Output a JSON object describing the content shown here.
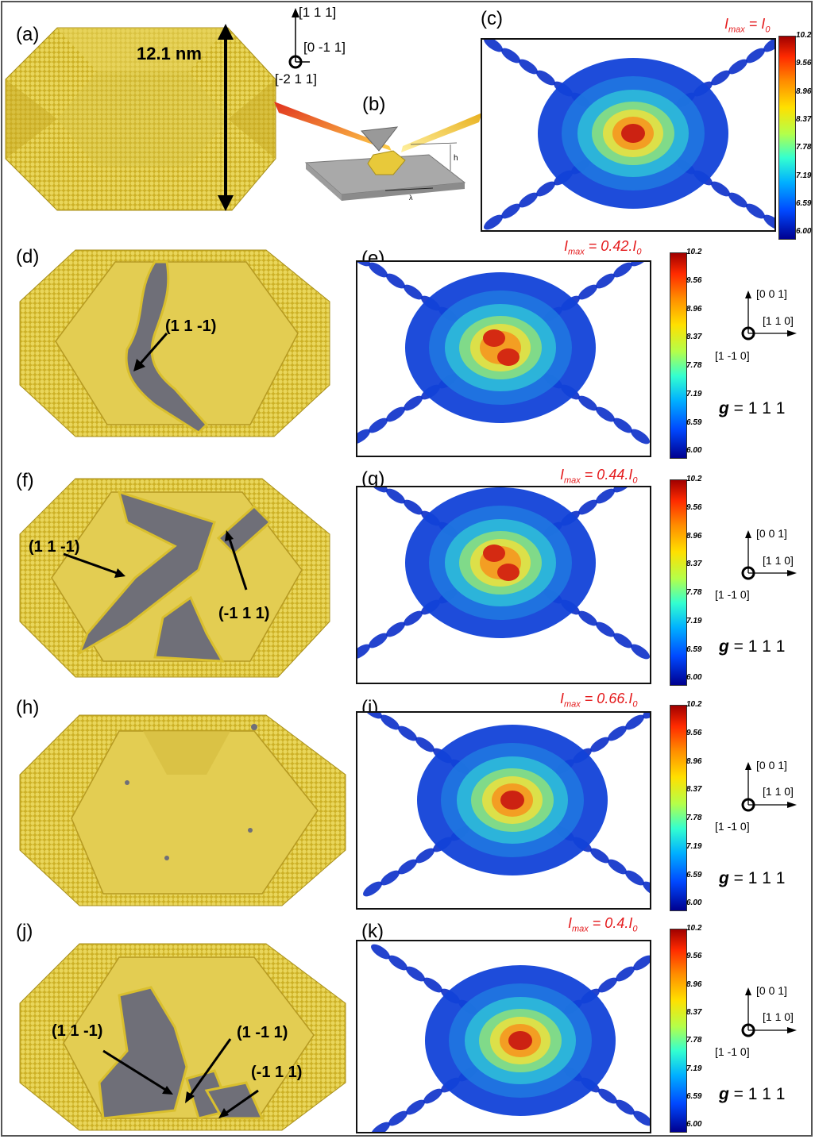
{
  "panels": {
    "a": {
      "label": "(a)",
      "dimension": "12.1 nm"
    },
    "b": {
      "label": "(b)",
      "h": "h",
      "lambda": "λ"
    },
    "c": {
      "label": "(c)",
      "imax": "I",
      "imax_sub": "max",
      "imax_rest": " = I",
      "imax_rest_sub": "0"
    },
    "d": {
      "label": "(d)",
      "annotations": [
        "(1 1 -1)"
      ]
    },
    "e": {
      "label": "(e)",
      "imax": "I",
      "imax_sub": "max",
      "imax_rest": " = 0.42.I",
      "imax_rest_sub": "0"
    },
    "f": {
      "label": "(f)",
      "annotations": [
        "(1 1 -1)",
        "(-1 1 1)"
      ]
    },
    "g": {
      "label": "(g)",
      "imax": "I",
      "imax_sub": "max",
      "imax_rest": " = 0.44.I",
      "imax_rest_sub": "0"
    },
    "h": {
      "label": "(h)"
    },
    "i": {
      "label": "(i)",
      "imax": "I",
      "imax_sub": "max",
      "imax_rest": " = 0.66.I",
      "imax_rest_sub": "0"
    },
    "j": {
      "label": "(j)",
      "annotations": [
        "(1 1 -1)",
        "(1 -1 1)",
        "(-1 1 1)"
      ]
    },
    "k": {
      "label": "(k)",
      "imax": "I",
      "imax_sub": "max",
      "imax_rest": " = 0.4.I",
      "imax_rest_sub": "0"
    }
  },
  "top_axes": {
    "up": "[1 1 1]",
    "right": "[0 -1 1]",
    "out": "[-2 1 1]"
  },
  "side_axes": {
    "up": "[0 0 1]",
    "right": "[1 1 0]",
    "out": "[1 -1 0]"
  },
  "g_vector": {
    "symbol": "g",
    "value": "= 1 1 1"
  },
  "colorbar_ticks": [
    "10.2",
    "9.56",
    "8.96",
    "8.37",
    "7.78",
    "7.19",
    "6.59",
    "6.00"
  ],
  "colors": {
    "gold": "#d9bf2e",
    "grey": "#7a7a80",
    "annotation": "#e41a1c"
  }
}
